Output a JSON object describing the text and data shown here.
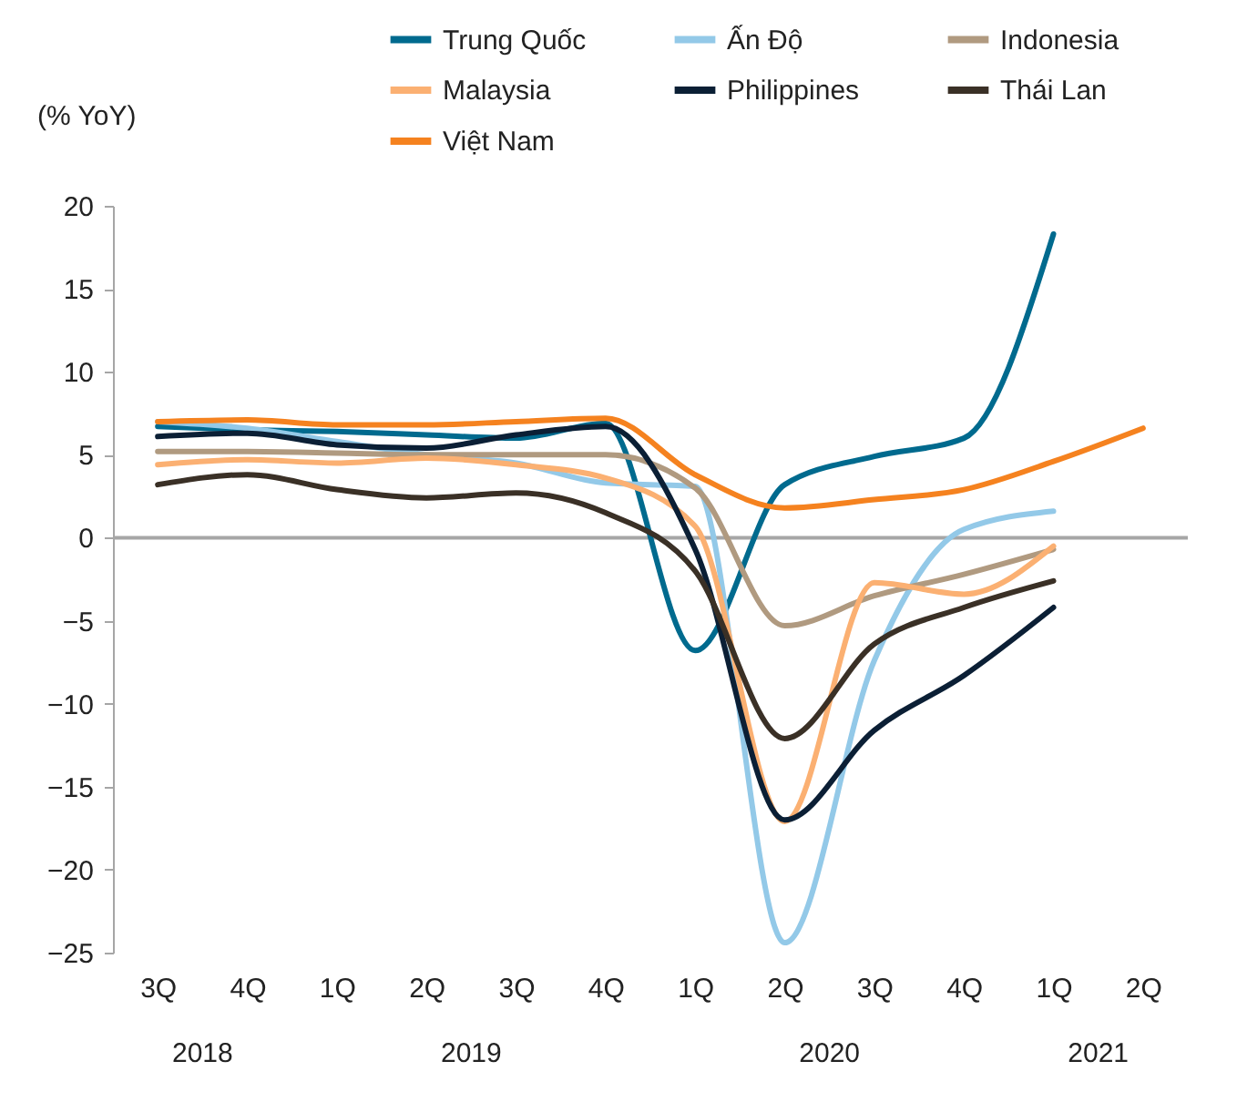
{
  "chart_data": {
    "type": "line",
    "ylabel": "(% YoY)",
    "categories": [
      "3Q",
      "4Q",
      "1Q",
      "2Q",
      "3Q",
      "4Q",
      "1Q",
      "2Q",
      "3Q",
      "4Q",
      "1Q",
      "2Q"
    ],
    "annotations": [
      "2018",
      "2019",
      "2020",
      "2021"
    ],
    "series": [
      {
        "name": "Trung Quốc",
        "color": "#006a8e",
        "values": [
          6.7,
          6.5,
          6.4,
          6.2,
          6.0,
          6.9,
          -6.8,
          3.2,
          4.9,
          6.0,
          18.3,
          null
        ]
      },
      {
        "name": "Ấn Độ",
        "color": "#93c9e8",
        "values": [
          7.0,
          6.6,
          5.8,
          5.0,
          4.5,
          3.3,
          3.1,
          -24.4,
          -7.4,
          0.5,
          1.6,
          null
        ]
      },
      {
        "name": "Indonesia",
        "color": "#b09a80",
        "values": [
          5.2,
          5.2,
          5.1,
          5.0,
          5.0,
          5.0,
          3.0,
          -5.3,
          -3.5,
          -2.2,
          -0.7,
          null
        ]
      },
      {
        "name": "Malaysia",
        "color": "#fbb072",
        "values": [
          4.4,
          4.7,
          4.5,
          4.8,
          4.4,
          3.6,
          0.7,
          -17.1,
          -2.7,
          -3.4,
          -0.5,
          null
        ]
      },
      {
        "name": "Philippines",
        "color": "#0b1f35",
        "values": [
          6.1,
          6.3,
          5.6,
          5.4,
          6.2,
          6.7,
          -0.7,
          -17.0,
          -11.6,
          -8.3,
          -4.2,
          null
        ]
      },
      {
        "name": "Thái Lan",
        "color": "#3a3026",
        "values": [
          3.2,
          3.8,
          2.9,
          2.4,
          2.7,
          1.5,
          -2.0,
          -12.1,
          -6.4,
          -4.2,
          -2.6,
          null
        ]
      },
      {
        "name": "Việt Nam",
        "color": "#f5821f",
        "values": [
          7.0,
          7.1,
          6.8,
          6.8,
          7.0,
          7.2,
          3.8,
          1.8,
          2.3,
          2.9,
          4.6,
          6.6
        ]
      }
    ],
    "ylim": [
      -25,
      20
    ],
    "yticks": [
      -25,
      -20,
      -15,
      -10,
      -5,
      0,
      5,
      10,
      15,
      20
    ],
    "ref_lines": [
      {
        "axis": "y",
        "value": 0,
        "color": "#a6a6a6"
      }
    ],
    "legend": "top",
    "grid": false
  }
}
